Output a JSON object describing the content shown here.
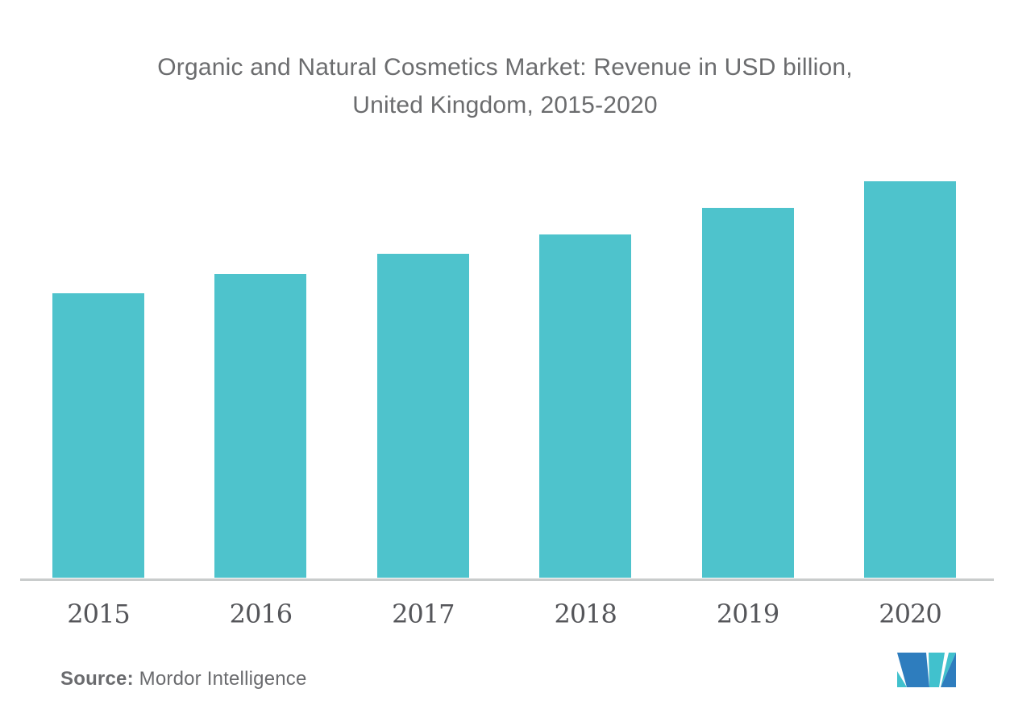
{
  "title": {
    "line1": "Organic and Natural Cosmetics Market: Revenue in USD billion,",
    "line2": "United Kingdom, 2015-2020"
  },
  "chart_data": {
    "type": "bar",
    "title": "Organic and Natural Cosmetics Market: Revenue in USD billion, United Kingdom, 2015-2020",
    "categories": [
      "2015",
      "2016",
      "2017",
      "2018",
      "2019",
      "2020"
    ],
    "values": [
      2.15,
      2.3,
      2.45,
      2.6,
      2.8,
      3.0
    ],
    "unit": "USD billion",
    "xlabel": "",
    "ylabel": "",
    "ylim": [
      0,
      3.45
    ],
    "grid": false,
    "y_axis_visible": false,
    "legend": "none",
    "bar_color": "#4EC3CC"
  },
  "source": {
    "label": "Source:",
    "name": " Mordor Intelligence"
  },
  "logo": {
    "name": "Mordor Intelligence logo mark",
    "blue": "#2E7DBE",
    "teal": "#41C1CD"
  },
  "colors": {
    "background": "#FFFFFF",
    "title_text": "#6B6C6E",
    "axis_label_text": "#55565A",
    "axis_line": "#C9CCCC",
    "source_text": "#6A6B6E"
  }
}
